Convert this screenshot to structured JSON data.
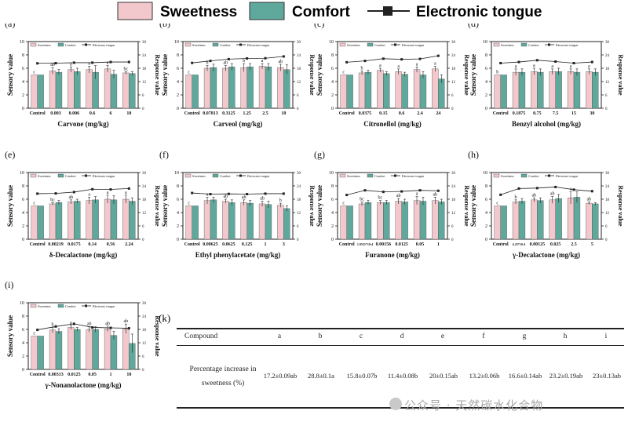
{
  "legend": {
    "sweetness": "Sweetness",
    "comfort": "Comfort",
    "etongue": "Electronic tongue"
  },
  "colors": {
    "sweetness": "#f2c8cc",
    "comfort": "#5fa89c",
    "etongue": "#222222"
  },
  "mini_legend": {
    "sweetness": "Sweetness",
    "comfort": "Comfort",
    "etongue": "Electronic tongue"
  },
  "chart_data": [
    {
      "panel": "(a)",
      "type": "bar",
      "xlabel": "Carvone (mg/kg)",
      "ylabel": "Sensory value",
      "y2label": "Response value",
      "categories": [
        "Control",
        "0.003",
        "0.006",
        "0.6",
        "6",
        "10"
      ],
      "series": [
        {
          "name": "Sweetness",
          "values": [
            5,
            5.6,
            5.8,
            5.8,
            5.9,
            5.3
          ],
          "err": [
            0,
            0.5,
            0.4,
            0.5,
            0.5,
            0.2
          ]
        },
        {
          "name": "Comfort",
          "values": [
            5,
            5.4,
            5.5,
            5.4,
            5.1,
            5.2
          ],
          "err": [
            0,
            0.4,
            0.5,
            1.0,
            0.6,
            0.3
          ]
        },
        {
          "name": "Electronic tongue",
          "values": [
            20.2,
            20.3,
            20.5,
            20.5,
            20.8,
            20.8
          ]
        }
      ],
      "letters": [
        "c",
        "ab",
        "a",
        "a",
        "a",
        "bc"
      ],
      "ylim": [
        0,
        10
      ],
      "y2lim": [
        0,
        30
      ]
    },
    {
      "panel": "(b)",
      "type": "bar",
      "xlabel": "Carveol (mg/kg)",
      "ylabel": "Sensory value",
      "y2label": "Response value",
      "categories": [
        "Control",
        "0.07813",
        "0.3125",
        "1.25",
        "2.5",
        "10"
      ],
      "series": [
        {
          "name": "Sweetness",
          "values": [
            5,
            6.0,
            6.0,
            6.1,
            6.3,
            6.1
          ],
          "err": [
            0,
            0.4,
            0.4,
            0.6,
            0.4,
            0.5
          ]
        },
        {
          "name": "Comfort",
          "values": [
            5,
            6.1,
            6.2,
            6.2,
            6.2,
            5.8
          ],
          "err": [
            0,
            0.5,
            0.5,
            0.5,
            0.5,
            0.7
          ]
        },
        {
          "name": "Electronic tongue",
          "values": [
            20.4,
            21.3,
            22.1,
            22.4,
            22.5,
            23.3
          ]
        }
      ],
      "letters": [
        "c",
        "b",
        "ab",
        "b",
        "a",
        "ab"
      ],
      "ylim": [
        0,
        10
      ],
      "y2lim": [
        0,
        30
      ]
    },
    {
      "panel": "(c)",
      "type": "bar",
      "xlabel": "Citronellol (mg/kg)",
      "ylabel": "Sensory value",
      "y2label": "Response value",
      "categories": [
        "Control",
        "0.0375",
        "0.15",
        "0.6",
        "2.4",
        "24"
      ],
      "series": [
        {
          "name": "Sweetness",
          "values": [
            5,
            5.3,
            5.7,
            5.5,
            5.8,
            5.9
          ],
          "err": [
            0,
            0.3,
            0.3,
            0.4,
            0.4,
            0.4
          ]
        },
        {
          "name": "Comfort",
          "values": [
            5,
            5.4,
            5.2,
            5.1,
            5.0,
            4.4
          ],
          "err": [
            0,
            0.3,
            0.3,
            0.3,
            0.5,
            0.6
          ]
        },
        {
          "name": "Electronic tongue",
          "values": [
            20.7,
            21.3,
            22.3,
            22.0,
            22.2,
            23.6
          ]
        }
      ],
      "letters": [
        "c",
        "b",
        "a",
        "a",
        "a",
        "a"
      ],
      "ylim": [
        0,
        10
      ],
      "y2lim": [
        0,
        30
      ]
    },
    {
      "panel": "(d)",
      "type": "bar",
      "xlabel": "Benzyl alcohol (mg/kg)",
      "ylabel": "Sensory value",
      "y2label": "Response value",
      "categories": [
        "Control",
        "0.1875",
        "0.75",
        "7.5",
        "15",
        "30"
      ],
      "series": [
        {
          "name": "Sweetness",
          "values": [
            5,
            5.4,
            5.5,
            5.5,
            5.5,
            5.5
          ],
          "err": [
            0,
            0.5,
            0.5,
            0.4,
            0.4,
            0.4
          ]
        },
        {
          "name": "Comfort",
          "values": [
            5,
            5.4,
            5.4,
            5.5,
            5.4,
            5.4
          ],
          "err": [
            0,
            0.5,
            0.5,
            0.5,
            0.5,
            0.5
          ]
        },
        {
          "name": "Electronic tongue",
          "values": [
            20.3,
            20.8,
            21.6,
            21.0,
            20.3,
            20.8
          ]
        }
      ],
      "letters": [
        "b",
        "a",
        "a",
        "a",
        "a",
        "a"
      ],
      "ylim": [
        0,
        10
      ],
      "y2lim": [
        0,
        30
      ]
    },
    {
      "panel": "(e)",
      "type": "bar",
      "xlabel": "δ-Decalactone (mg/kg)",
      "ylabel": "Sensory value",
      "y2label": "Response value",
      "categories": [
        "Control",
        "0.00219",
        "0.0175",
        "0.14",
        "0.56",
        "2.24"
      ],
      "series": [
        {
          "name": "Sweetness",
          "values": [
            5,
            5.3,
            5.6,
            5.8,
            6.0,
            6.0
          ],
          "err": [
            0,
            0.2,
            0.3,
            0.5,
            0.6,
            0.6
          ]
        },
        {
          "name": "Comfort",
          "values": [
            5,
            5.5,
            5.7,
            5.9,
            5.9,
            5.7
          ],
          "err": [
            0,
            0.3,
            0.3,
            0.5,
            0.6,
            0.5
          ]
        },
        {
          "name": "Electronic tongue",
          "values": [
            20.5,
            20.6,
            21.2,
            22.5,
            22.4,
            22.8
          ]
        }
      ],
      "letters": [
        "c",
        "bc",
        "ab",
        "a",
        "a",
        "a"
      ],
      "ylim": [
        0,
        10
      ],
      "y2lim": [
        0,
        30
      ]
    },
    {
      "panel": "(f)",
      "type": "bar",
      "xlabel": "Ethyl phenylacetate (mg/kg)",
      "ylabel": "Sensory value",
      "y2label": "Response value",
      "categories": [
        "Control",
        "0.00625",
        "0.0625",
        "0.125",
        "1",
        "3"
      ],
      "series": [
        {
          "name": "Sweetness",
          "values": [
            5,
            5.8,
            5.7,
            5.5,
            5.3,
            5.1
          ],
          "err": [
            0,
            0.5,
            0.3,
            0.4,
            0.4,
            0.3
          ]
        },
        {
          "name": "Comfort",
          "values": [
            5,
            5.9,
            5.5,
            5.4,
            5.2,
            4.6
          ],
          "err": [
            0,
            0.4,
            0.4,
            0.4,
            0.5,
            0.4
          ]
        },
        {
          "name": "Electronic tongue",
          "values": [
            20.8,
            20.3,
            20.4,
            20.3,
            20.5,
            20.5
          ]
        }
      ],
      "letters": [
        "c",
        "a",
        "ab",
        "ab",
        "ab",
        "b"
      ],
      "ylim": [
        0,
        10
      ],
      "y2lim": [
        0,
        30
      ]
    },
    {
      "panel": "(g)",
      "type": "bar",
      "xlabel": "Furanone (mg/kg)",
      "ylabel": "Sensory value",
      "y2label": "Response value",
      "categories": [
        "Control",
        "1.9531*10-4",
        "0.00156",
        "0.0125",
        "0.05",
        "1"
      ],
      "series": [
        {
          "name": "Sweetness",
          "values": [
            5,
            5.3,
            5.5,
            5.7,
            5.8,
            5.8
          ],
          "err": [
            0,
            0.3,
            0.3,
            0.4,
            0.6,
            0.5
          ]
        },
        {
          "name": "Comfort",
          "values": [
            5,
            5.5,
            5.5,
            5.6,
            5.7,
            5.6
          ],
          "err": [
            0,
            0.3,
            0.3,
            0.4,
            0.6,
            0.4
          ]
        },
        {
          "name": "Electronic tongue",
          "values": [
            19.9,
            22.0,
            21.3,
            21.5,
            22.0,
            21.8
          ]
        }
      ],
      "letters": [
        "c",
        "bc",
        "bc",
        "ab",
        "a",
        "ab"
      ],
      "ylim": [
        0,
        10
      ],
      "y2lim": [
        0,
        30
      ]
    },
    {
      "panel": "(h)",
      "type": "bar",
      "xlabel": "γ-Decalactone (mg/kg)",
      "ylabel": "Sensory value",
      "y2label": "Response value",
      "categories": [
        "Control",
        "6.25*10-4",
        "0.00125",
        "0.025",
        "2.5",
        "5"
      ],
      "series": [
        {
          "name": "Sweetness",
          "values": [
            5,
            5.6,
            5.9,
            5.9,
            6.2,
            5.4
          ],
          "err": [
            0,
            0.3,
            0.3,
            0.5,
            0.9,
            0.2
          ]
        },
        {
          "name": "Comfort",
          "values": [
            5,
            5.7,
            5.8,
            6.1,
            6.3,
            5.3
          ],
          "err": [
            0,
            0.4,
            0.4,
            0.6,
            0.8,
            0.2
          ]
        },
        {
          "name": "Electronic tongue",
          "values": [
            20.0,
            22.8,
            23.0,
            23.5,
            22.3,
            21.6
          ]
        }
      ],
      "letters": [
        "c",
        "b",
        "ab",
        "ab",
        "a",
        "ab"
      ],
      "ylim": [
        0,
        10
      ],
      "y2lim": [
        0,
        30
      ]
    },
    {
      "panel": "(i)",
      "type": "bar",
      "xlabel": "γ-Nonanolactone (mg/kg)",
      "ylabel": "Sensory value",
      "y2label": "Response value",
      "categories": [
        "Control",
        "0.00313",
        "0.0125",
        "0.05",
        "1",
        "10"
      ],
      "series": [
        {
          "name": "Sweetness",
          "values": [
            5,
            5.9,
            6.3,
            6.0,
            6.1,
            6.1
          ],
          "err": [
            0,
            0.4,
            0.3,
            0.4,
            0.4,
            0.7
          ]
        },
        {
          "name": "Comfort",
          "values": [
            5,
            5.7,
            6.0,
            6.0,
            5.1,
            3.9
          ],
          "err": [
            0,
            0.4,
            0.3,
            0.4,
            0.6,
            1.4
          ]
        },
        {
          "name": "Electronic tongue",
          "values": [
            17.8,
            19.3,
            20.5,
            18.9,
            18.7,
            18.5
          ]
        }
      ],
      "letters": [
        "c",
        "b",
        "a",
        "ab",
        "ab",
        "ab"
      ],
      "ylim": [
        0,
        10
      ],
      "y2lim": [
        0,
        30
      ]
    }
  ],
  "table": {
    "label": "(k)",
    "compound_header": "Compound",
    "row_label_line1": "Percentage increase in",
    "row_label_line2": "sweetness (%)",
    "columns": [
      "a",
      "b",
      "c",
      "d",
      "e",
      "f",
      "g",
      "h",
      "i"
    ],
    "values": [
      "17.2±0.09ab",
      "28.8±0.1a",
      "15.8±0.07b",
      "11.4±0.08b",
      "20±0.15ab",
      "13.2±0.06b",
      "16.6±0.14ab",
      "23.2±0.19ab",
      "23±0.13ab"
    ]
  },
  "watermark": "公众号 · 天然碳水化合物"
}
